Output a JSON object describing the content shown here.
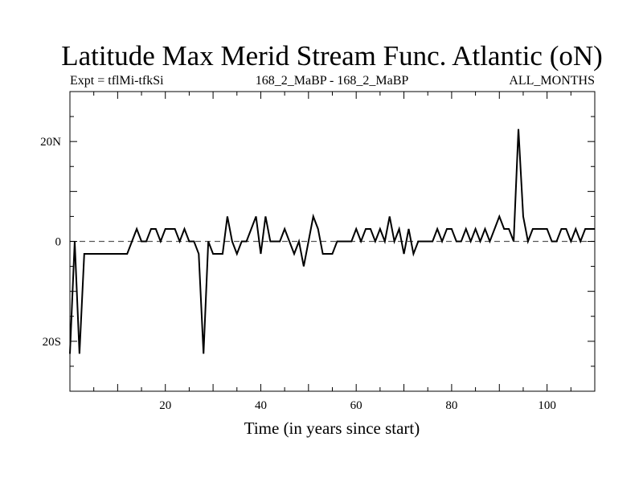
{
  "chart_data": {
    "type": "line",
    "title": "Latitude Max Merid Stream Func. Atlantic (oN)",
    "subtitle_left": "Expt = tflMi-tfkSi",
    "subtitle_center": "168_2_MaBP - 168_2_MaBP",
    "subtitle_right": "ALL_MONTHS",
    "xlabel": "Time (in years since start)",
    "ylabel": "",
    "xlim": [
      0,
      110
    ],
    "ylim": [
      -30,
      30
    ],
    "x_ticks": [
      20,
      40,
      60,
      80,
      100
    ],
    "x_tick_labels": [
      "20",
      "40",
      "60",
      "80",
      "100"
    ],
    "y_ticks": [
      -20,
      0,
      20
    ],
    "y_tick_labels": [
      "20S",
      "0",
      "20N"
    ],
    "zero_line": "dashed",
    "grid": false,
    "series": [
      {
        "x": [
          0,
          1,
          2,
          3,
          4,
          5,
          6,
          7,
          8,
          9,
          10,
          11,
          12,
          13,
          14,
          15,
          16,
          17,
          18,
          19,
          20,
          21,
          22,
          23,
          24,
          25,
          26,
          27,
          28,
          29,
          30,
          31,
          32,
          33,
          34,
          35,
          36,
          37,
          38,
          39,
          40,
          41,
          42,
          43,
          44,
          45,
          46,
          47,
          48,
          49,
          50,
          51,
          52,
          53,
          54,
          55,
          56,
          57,
          58,
          59,
          60,
          61,
          62,
          63,
          64,
          65,
          66,
          67,
          68,
          69,
          70,
          71,
          72,
          73,
          74,
          75,
          76,
          77,
          78,
          79,
          80,
          81,
          82,
          83,
          84,
          85,
          86,
          87,
          88,
          89,
          90,
          91,
          92,
          93,
          94,
          95,
          96,
          97,
          98,
          99,
          100,
          101,
          102,
          103,
          104,
          105,
          106,
          107,
          108,
          109,
          110
        ],
        "y": [
          -22.5,
          0,
          -22.5,
          -2.5,
          -2.5,
          -2.5,
          -2.5,
          -2.5,
          -2.5,
          -2.5,
          -2.5,
          -2.5,
          -2.5,
          0,
          2.5,
          0,
          0,
          2.5,
          2.5,
          0,
          2.5,
          2.5,
          2.5,
          0,
          2.5,
          0,
          0,
          -2.5,
          -22.5,
          0,
          -2.5,
          -2.5,
          -2.5,
          5,
          0,
          -2.5,
          0,
          0,
          2.5,
          5,
          -2.5,
          5,
          0,
          0,
          0,
          2.5,
          0,
          -2.5,
          0,
          -5,
          0,
          5,
          2.5,
          -2.5,
          -2.5,
          -2.5,
          0,
          0,
          0,
          0,
          2.5,
          0,
          2.5,
          2.5,
          0,
          2.5,
          0,
          5,
          0,
          2.5,
          -2.5,
          2.5,
          -2.5,
          0,
          0,
          0,
          0,
          2.5,
          0,
          2.5,
          2.5,
          0,
          0,
          2.5,
          0,
          2.5,
          0,
          2.5,
          0,
          2.5,
          5,
          2.5,
          2.5,
          0,
          22.5,
          5,
          0,
          2.5,
          2.5,
          2.5,
          2.5,
          0,
          0,
          2.5,
          2.5,
          0,
          2.5,
          0,
          2.5,
          2.5,
          2.5
        ]
      }
    ]
  }
}
